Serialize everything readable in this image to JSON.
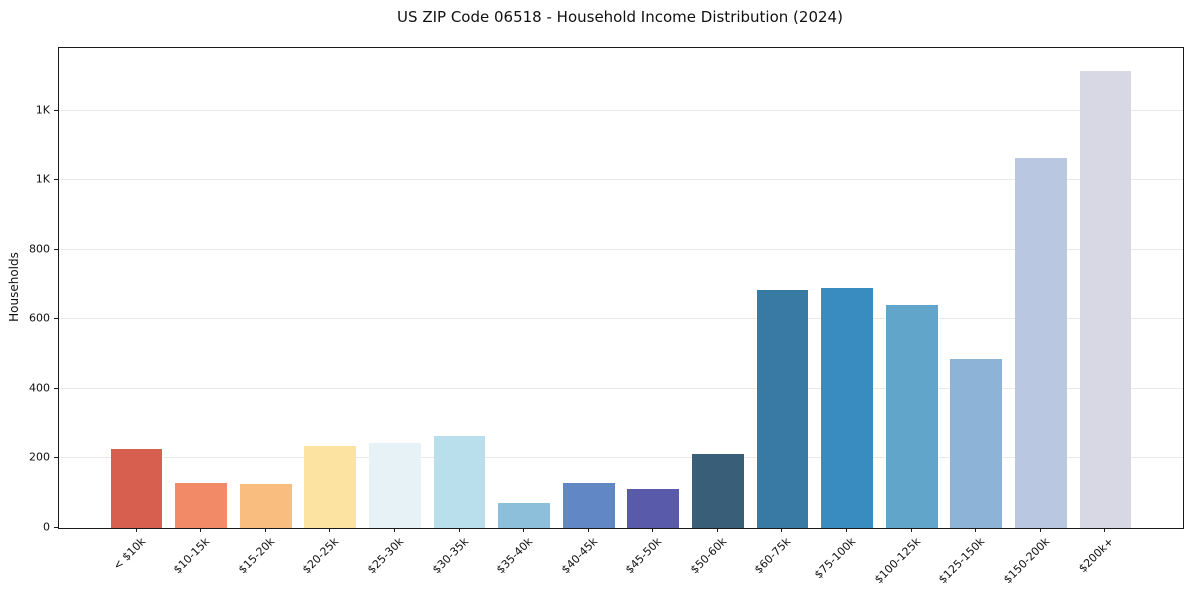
{
  "chart_data": {
    "type": "bar",
    "title": "US ZIP Code 06518 - Household Income Distribution (2024)",
    "xlabel": "",
    "ylabel": "Households",
    "categories": [
      "< $10k",
      "$10-15k",
      "$15-20k",
      "$20-25k",
      "$25-30k",
      "$30-35k",
      "$35-40k",
      "$40-45k",
      "$45-50k",
      "$50-60k",
      "$60-75k",
      "$75-100k",
      "$100-125k",
      "$125-150k",
      "$150-200k",
      "$200k+"
    ],
    "values": [
      228,
      128,
      127,
      235,
      243,
      265,
      72,
      129,
      112,
      213,
      685,
      691,
      642,
      487,
      1065,
      1313
    ],
    "bar_colors": [
      "#d65f50",
      "#f28a67",
      "#f9bd80",
      "#fde3a2",
      "#e6f2f6",
      "#b9dfec",
      "#8dbeda",
      "#6187c4",
      "#5a5aab",
      "#395f78",
      "#387aa3",
      "#388cbf",
      "#61a5ca",
      "#8db4d7",
      "#b9c8e0",
      "#d7d8e4"
    ],
    "ylim": [
      0,
      1380
    ],
    "yticks": [
      {
        "value": 0,
        "label": "0"
      },
      {
        "value": 200,
        "label": "200"
      },
      {
        "value": 400,
        "label": "400"
      },
      {
        "value": 600,
        "label": "600"
      },
      {
        "value": 800,
        "label": "800"
      },
      {
        "value": 1000,
        "label": "1K"
      },
      {
        "value": 1200,
        "label": "1K"
      }
    ],
    "grid": "horizontal",
    "legend": "none",
    "x_tick_rotation_deg": 45
  }
}
